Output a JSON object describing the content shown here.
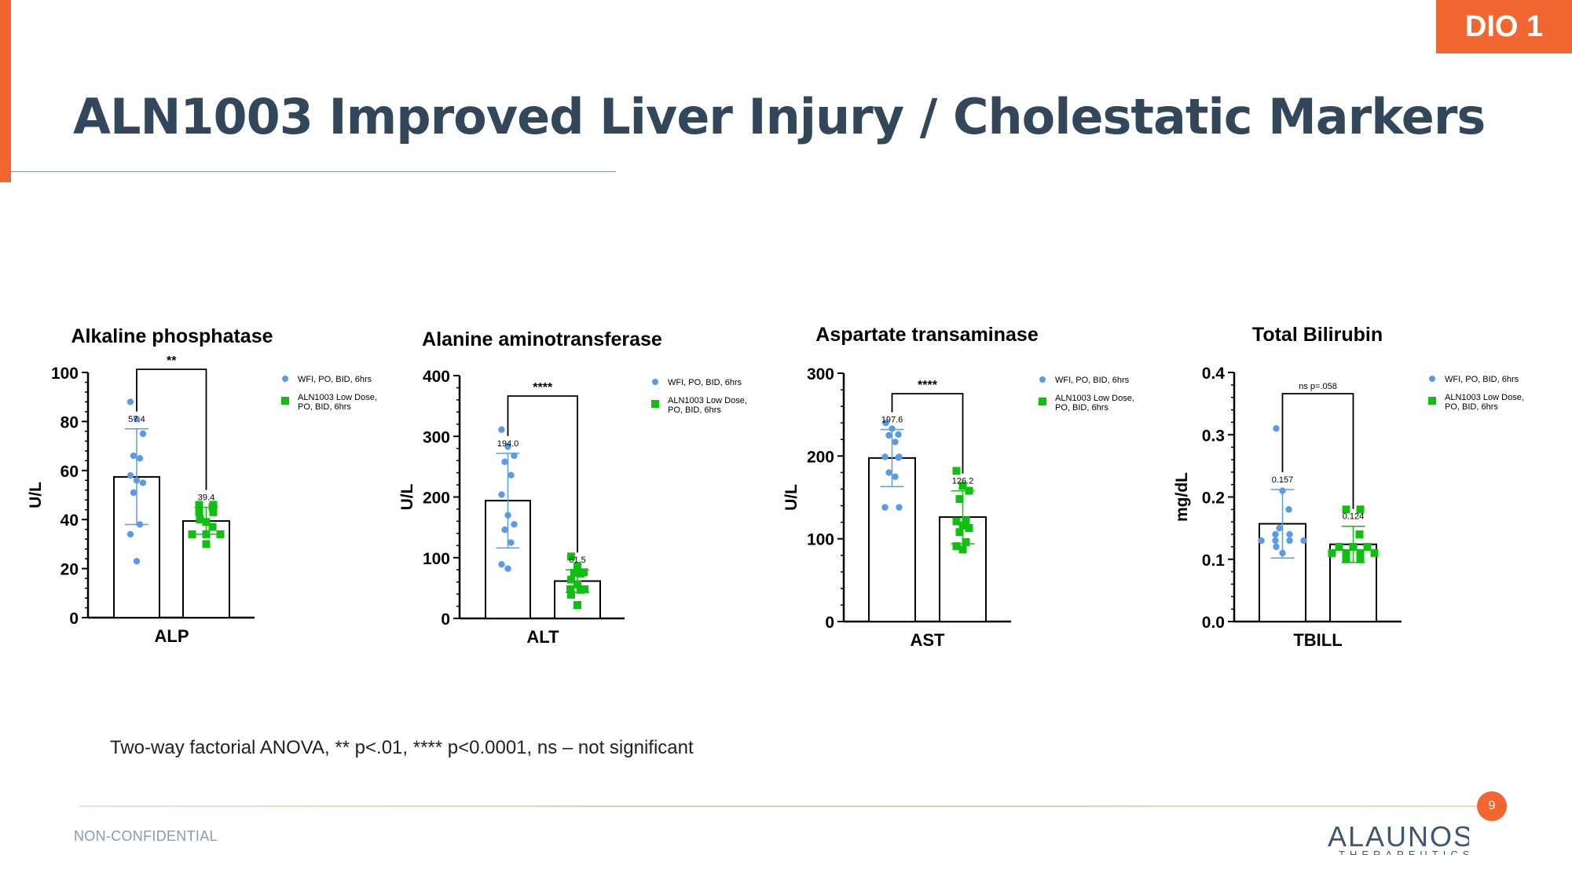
{
  "header": {
    "badge": "DIO 1",
    "title": "ALN1003 Improved Liver Injury / Cholestatic Markers"
  },
  "footnote": "Two-way factorial ANOVA, ** p<.01, **** p<0.0001, ns – not significant",
  "footer": {
    "classification": "NON-CONFIDENTIAL",
    "page_number": "9",
    "logo_text": "ALAUNOS",
    "logo_subtext": "THERAPEUTICS"
  },
  "colors": {
    "accent": "#f26631",
    "title": "#33475b",
    "vehicle_points": "#5b9be6",
    "treatment_points": "#10c010"
  },
  "chart_data": [
    {
      "type": "bar",
      "title": "Alkaline phosphatase",
      "xlabel": "ALP",
      "ylabel": "U/L",
      "ylim": [
        0,
        100
      ],
      "yticks": [
        "0",
        "20",
        "40",
        "60",
        "80",
        "100"
      ],
      "significance": "**",
      "legend_position": "top-right",
      "series": [
        {
          "name": "WFI, PO, BID, 6hrs",
          "mean": 57.4,
          "mean_label": "57.4",
          "sd_low": 38,
          "sd_high": 77,
          "points": [
            88,
            81,
            75,
            66,
            65,
            58,
            56,
            55,
            51,
            38,
            34,
            23
          ]
        },
        {
          "name": "ALN1003 Low Dose, PO, BID, 6hrs",
          "mean": 39.4,
          "mean_label": "39.4",
          "sd_low": 34,
          "sd_high": 45,
          "points": [
            46,
            46,
            45,
            43,
            43,
            40,
            39,
            37,
            34,
            34,
            34,
            30
          ]
        }
      ]
    },
    {
      "type": "bar",
      "title": "Alanine aminotransferase",
      "xlabel": "ALT",
      "ylabel": "U/L",
      "ylim": [
        0,
        400
      ],
      "yticks": [
        "0",
        "100",
        "200",
        "300",
        "400"
      ],
      "significance": "****",
      "legend_position": "top-right",
      "series": [
        {
          "name": "WFI, PO, BID, 6hrs",
          "mean": 194.0,
          "mean_label": "194.0",
          "sd_low": 116,
          "sd_high": 272,
          "points": [
            311,
            283,
            268,
            258,
            236,
            204,
            170,
            155,
            146,
            125,
            89,
            82
          ]
        },
        {
          "name": "ALN1003  Low  Dose, PO, BID, 6hrs",
          "mean": 61.5,
          "mean_label": "61.5",
          "sd_low": 43,
          "sd_high": 80,
          "points": [
            102,
            86,
            76,
            75,
            74,
            64,
            56,
            48,
            48,
            47,
            39,
            22
          ]
        }
      ]
    },
    {
      "type": "bar",
      "title": "Aspartate transaminase",
      "xlabel": "AST",
      "ylabel": "U/L",
      "ylim": [
        0,
        300
      ],
      "yticks": [
        "0",
        "100",
        "200",
        "300"
      ],
      "significance": "****",
      "legend_position": "top-right",
      "series": [
        {
          "name": "WFI, PO, BID, 6hrs",
          "mean": 197.6,
          "mean_label": "197.6",
          "sd_low": 163,
          "sd_high": 232,
          "points": [
            240,
            233,
            226,
            225,
            217,
            199,
            199,
            198,
            180,
            175,
            138,
            138
          ]
        },
        {
          "name": "ALN1003 Low Dose, PO, BID, 6hrs",
          "mean": 126.2,
          "mean_label": "126.2",
          "sd_low": 94,
          "sd_high": 158,
          "points": [
            182,
            164,
            158,
            148,
            122,
            121,
            116,
            113,
            108,
            96,
            91,
            87
          ]
        }
      ]
    },
    {
      "type": "bar",
      "title": "Total Bilirubin",
      "xlabel": "TBILL",
      "ylabel": "mg/dL",
      "ylim": [
        0,
        0.4
      ],
      "yticks": [
        "0.0",
        "0.1",
        "0.2",
        "0.3",
        "0.4"
      ],
      "significance": "ns  p=.058",
      "legend_position": "top-right",
      "series": [
        {
          "name": "WFI, PO, BID, 6hrs",
          "mean": 0.157,
          "mean_label": "0.157",
          "sd_low": 0.102,
          "sd_high": 0.212,
          "points": [
            0.31,
            0.21,
            0.18,
            0.15,
            0.14,
            0.14,
            0.13,
            0.13,
            0.13,
            0.13,
            0.12,
            0.11
          ]
        },
        {
          "name": "ALN1003 Low Dose, PO, BID, 6hrs",
          "mean": 0.124,
          "mean_label": "0.124",
          "sd_low": 0.095,
          "sd_high": 0.153,
          "points": [
            0.18,
            0.18,
            0.14,
            0.12,
            0.12,
            0.12,
            0.11,
            0.11,
            0.11,
            0.11,
            0.1,
            0.1
          ]
        }
      ]
    }
  ]
}
